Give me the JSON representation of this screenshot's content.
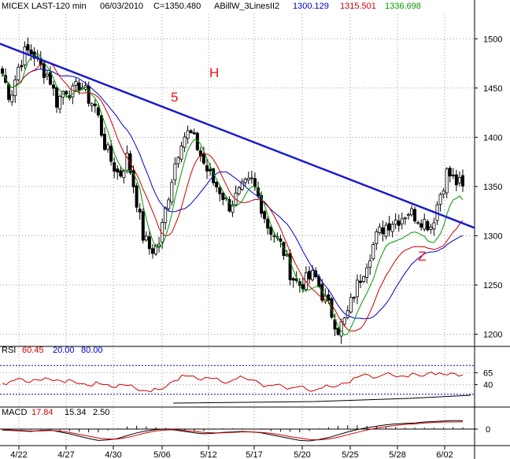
{
  "header": {
    "symbol_label": "MICEX LAST-120 min",
    "date": "06/03/2010",
    "close_label": "C=1350.480",
    "indicator_name": "ABillW_3LinesII2",
    "indicator_values": [
      "1300.129",
      "1315.501",
      "1336.698"
    ],
    "indicator_colors": [
      "#0000cc",
      "#cc0000",
      "#009900"
    ]
  },
  "annotations": {
    "wave5": "5",
    "wave_h": "H",
    "wave_z": "Z",
    "color": "#ee1111"
  },
  "rsi_header": {
    "name": "RSI",
    "value": "60.45",
    "lower": "20.00",
    "upper": "80.00"
  },
  "macd_header": {
    "name": "MACD",
    "value": "17.84",
    "signal": "15.34",
    "hist": "2.50"
  },
  "chart_data": [
    {
      "type": "candlestick",
      "title": "MICEX LAST-120 min",
      "ylim": [
        1190,
        1525
      ],
      "y_ticks": [
        1200,
        1250,
        1300,
        1350,
        1400,
        1450,
        1500
      ],
      "x_tick_labels": [
        "4/22",
        "4/27",
        "4/30",
        "5/06",
        "5/12",
        "5/17",
        "5/20",
        "5/25",
        "5/28",
        "6/02"
      ],
      "close_path": [
        1465,
        1440,
        1470,
        1488,
        1485,
        1470,
        1462,
        1435,
        1450,
        1445,
        1455,
        1440,
        1430,
        1395,
        1375,
        1360,
        1380,
        1345,
        1300,
        1285,
        1290,
        1330,
        1370,
        1400,
        1405,
        1390,
        1370,
        1355,
        1345,
        1330,
        1340,
        1350,
        1355,
        1335,
        1310,
        1300,
        1285,
        1260,
        1250,
        1255,
        1260,
        1240,
        1225,
        1205,
        1215,
        1240,
        1260,
        1280,
        1300,
        1310,
        1315,
        1318,
        1325,
        1320,
        1315,
        1310,
        1340,
        1365,
        1355,
        1350.48
      ],
      "series": [
        {
          "name": "1300.129",
          "color": "#0000cc",
          "last": 1300.129
        },
        {
          "name": "1315.501",
          "color": "#cc0000",
          "last": 1315.501
        },
        {
          "name": "1336.698",
          "color": "#009900",
          "last": 1336.698
        }
      ],
      "trendline": {
        "color": "#1a1acc",
        "points": [
          [
            "4/20",
            1495
          ],
          [
            "6/04",
            1308
          ]
        ]
      }
    },
    {
      "type": "line",
      "title": "RSI",
      "levels": [
        20,
        40,
        65,
        80
      ],
      "y_tick_labels": [
        "65",
        "40"
      ],
      "ylim": [
        0,
        100
      ],
      "values": [
        43,
        47,
        53,
        46,
        51,
        49,
        52,
        50,
        44,
        48,
        42,
        38,
        46,
        40,
        35,
        41,
        38,
        33,
        28,
        25,
        30,
        36,
        48,
        60,
        58,
        52,
        55,
        53,
        47,
        45,
        52,
        54,
        50,
        43,
        38,
        40,
        36,
        33,
        36,
        30,
        28,
        33,
        36,
        38,
        44,
        54,
        59,
        60,
        55,
        62,
        60,
        58,
        56,
        62,
        58,
        66,
        65,
        60,
        63,
        60.45
      ],
      "color": "#cc0000"
    },
    {
      "type": "line",
      "title": "MACD",
      "zero_label": "0",
      "ylim": [
        -30,
        25
      ],
      "macd": [
        -2,
        -3,
        -4,
        -5,
        -3,
        -2,
        -6,
        -10,
        -15,
        -20,
        -24,
        -23,
        -20,
        -14,
        -8,
        -4,
        -1,
        0,
        -2,
        -5,
        -8,
        -10,
        -9,
        -7,
        -6,
        -5,
        -6,
        -8,
        -12,
        -16,
        -20,
        -24,
        -25,
        -22,
        -18,
        -12,
        -6,
        -1,
        3,
        6,
        9,
        11,
        12,
        13,
        15,
        16,
        17,
        18,
        17.84
      ],
      "signal": [
        -1,
        -2,
        -3,
        -4,
        -4,
        -3,
        -4,
        -7,
        -11,
        -15,
        -19,
        -21,
        -21,
        -18,
        -13,
        -8,
        -4,
        -2,
        -1,
        -3,
        -5,
        -7,
        -8,
        -8,
        -7,
        -6,
        -6,
        -7,
        -9,
        -12,
        -16,
        -19,
        -22,
        -23,
        -21,
        -17,
        -12,
        -7,
        -2,
        2,
        5,
        8,
        10,
        11,
        13,
        14,
        15,
        15,
        15.34
      ],
      "macd_color": "#000000",
      "signal_color": "#cc0000",
      "hist_color": "#000000"
    }
  ]
}
